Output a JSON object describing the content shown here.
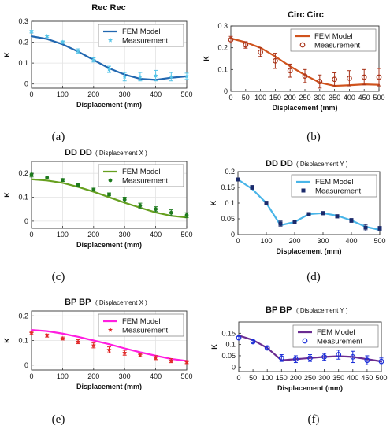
{
  "chart_data": [
    {
      "type": "line",
      "panel": "(a)",
      "title": "Rec Rec",
      "subtitle": "",
      "xlabel": "Displacement (mm)",
      "ylabel": "K",
      "xlim": [
        0,
        500
      ],
      "ylim": [
        -0.02,
        0.3
      ],
      "xticks": [
        0,
        100,
        200,
        300,
        400,
        500
      ],
      "yticks": [
        0,
        0.1,
        0.2,
        0.3
      ],
      "ytick_labels": [
        "0",
        "0.1",
        "0.2",
        "0.3"
      ],
      "grid": true,
      "legend_position": "top-right",
      "model_color": "#2167b0",
      "meas_color": "#57c4e8",
      "meas_marker": "star",
      "series": [
        {
          "name": "FEM Model",
          "kind": "line",
          "x": [
            0,
            50,
            100,
            150,
            200,
            250,
            300,
            350,
            400,
            450,
            500
          ],
          "y": [
            0.228,
            0.215,
            0.19,
            0.155,
            0.115,
            0.075,
            0.045,
            0.025,
            0.02,
            0.03,
            0.037
          ]
        },
        {
          "name": "Measurement",
          "kind": "markers",
          "x": [
            0,
            50,
            100,
            150,
            200,
            250,
            300,
            350,
            400,
            450,
            500
          ],
          "y": [
            0.25,
            0.228,
            0.2,
            0.158,
            0.115,
            0.07,
            0.035,
            0.035,
            0.04,
            0.035,
            0.037
          ],
          "err": [
            0.006,
            0.006,
            0.006,
            0.01,
            0.01,
            0.015,
            0.02,
            0.02,
            0.025,
            0.02,
            0.015
          ]
        }
      ]
    },
    {
      "type": "line",
      "panel": "(b)",
      "title": "Circ Circ",
      "subtitle": "",
      "xlabel": "Displacement (mm)",
      "ylabel": "K",
      "xlim": [
        0,
        500
      ],
      "ylim": [
        0,
        0.3
      ],
      "xticks": [
        0,
        50,
        100,
        150,
        200,
        250,
        300,
        350,
        400,
        450,
        500
      ],
      "yticks": [
        0,
        0.1,
        0.2,
        0.3
      ],
      "ytick_labels": [
        "0",
        "0.1",
        "0.2",
        "0.3"
      ],
      "grid": false,
      "legend_position": "top-right",
      "model_color": "#d0531d",
      "meas_color": "#a83218",
      "meas_marker": "circle-open",
      "series": [
        {
          "name": "FEM Model",
          "kind": "line",
          "x": [
            0,
            50,
            100,
            150,
            200,
            250,
            300,
            350,
            400,
            450,
            500
          ],
          "y": [
            0.243,
            0.225,
            0.2,
            0.16,
            0.115,
            0.075,
            0.04,
            0.025,
            0.028,
            0.032,
            0.03
          ]
        },
        {
          "name": "Measurement",
          "kind": "markers",
          "x": [
            0,
            50,
            100,
            150,
            200,
            250,
            300,
            350,
            400,
            450,
            500
          ],
          "y": [
            0.237,
            0.213,
            0.18,
            0.14,
            0.095,
            0.07,
            0.045,
            0.055,
            0.06,
            0.065,
            0.065
          ],
          "err": [
            0.015,
            0.015,
            0.02,
            0.035,
            0.03,
            0.03,
            0.03,
            0.03,
            0.035,
            0.035,
            0.04
          ]
        }
      ]
    },
    {
      "type": "line",
      "panel": "(c)",
      "title": "DD DD",
      "subtitle": "( Displacement X )",
      "xlabel": "Displacement (mm)",
      "ylabel": "K",
      "xlim": [
        0,
        500
      ],
      "ylim": [
        -0.03,
        0.25
      ],
      "xticks": [
        0,
        100,
        200,
        300,
        400,
        500
      ],
      "yticks": [
        0,
        0.1,
        0.2
      ],
      "ytick_labels": [
        "0",
        "0.1",
        "0.2"
      ],
      "grid": true,
      "legend_position": "top-right",
      "model_color": "#67a020",
      "meas_color": "#1e7a1e",
      "meas_marker": "dot",
      "series": [
        {
          "name": "FEM Model",
          "kind": "line",
          "x": [
            0,
            50,
            100,
            150,
            200,
            250,
            300,
            350,
            400,
            450,
            500
          ],
          "y": [
            0.175,
            0.17,
            0.16,
            0.143,
            0.123,
            0.1,
            0.077,
            0.056,
            0.036,
            0.022,
            0.015
          ]
        },
        {
          "name": "Measurement",
          "kind": "markers",
          "x": [
            0,
            50,
            100,
            150,
            200,
            250,
            300,
            350,
            400,
            450,
            500
          ],
          "y": [
            0.195,
            0.183,
            0.172,
            0.15,
            0.132,
            0.112,
            0.09,
            0.065,
            0.05,
            0.035,
            0.025
          ],
          "err": [
            0.01,
            0.006,
            0.006,
            0.006,
            0.006,
            0.006,
            0.01,
            0.01,
            0.01,
            0.012,
            0.01
          ]
        }
      ]
    },
    {
      "type": "line",
      "panel": "(d)",
      "title": "DD DD",
      "subtitle": "( Displacement Y )",
      "xlabel": "Displacement (mm)",
      "ylabel": "K",
      "xlim": [
        0,
        500
      ],
      "ylim": [
        0,
        0.2
      ],
      "xticks": [
        0,
        100,
        200,
        300,
        400,
        500
      ],
      "yticks": [
        0,
        0.05,
        0.1,
        0.15,
        0.2
      ],
      "ytick_labels": [
        "0",
        "0.05",
        "0.1",
        "0.15",
        "0.2"
      ],
      "grid": false,
      "legend_position": "top-right",
      "model_color": "#49b5e8",
      "meas_color": "#1a2a6b",
      "meas_marker": "square",
      "series": [
        {
          "name": "FEM Model",
          "kind": "line",
          "x": [
            0,
            50,
            100,
            150,
            200,
            250,
            300,
            350,
            400,
            450,
            500
          ],
          "y": [
            0.175,
            0.145,
            0.1,
            0.03,
            0.04,
            0.065,
            0.068,
            0.06,
            0.045,
            0.025,
            0.015
          ]
        },
        {
          "name": "Measurement",
          "kind": "markers",
          "x": [
            0,
            50,
            100,
            150,
            200,
            250,
            300,
            350,
            400,
            450,
            500
          ],
          "y": [
            0.175,
            0.15,
            0.1,
            0.035,
            0.04,
            0.065,
            0.068,
            0.058,
            0.045,
            0.022,
            0.02
          ],
          "err": [
            0.004,
            0.006,
            0.006,
            0.008,
            0.006,
            0.005,
            0.005,
            0.005,
            0.006,
            0.01,
            0.006
          ]
        }
      ]
    },
    {
      "type": "line",
      "panel": "(e)",
      "title": "BP BP",
      "subtitle": "( Displacement X )",
      "xlabel": "Displacement (mm)",
      "ylabel": "K",
      "xlim": [
        0,
        500
      ],
      "ylim": [
        -0.02,
        0.22
      ],
      "xticks": [
        0,
        100,
        200,
        300,
        400,
        500
      ],
      "yticks": [
        0,
        0.1,
        0.2
      ],
      "ytick_labels": [
        "0",
        "0.1",
        "0.2"
      ],
      "grid": true,
      "legend_position": "top-right",
      "model_color": "#ff1ee0",
      "meas_color": "#e02828",
      "meas_marker": "star",
      "series": [
        {
          "name": "FEM Model",
          "kind": "line",
          "x": [
            0,
            50,
            100,
            150,
            200,
            250,
            300,
            350,
            400,
            450,
            500
          ],
          "y": [
            0.143,
            0.138,
            0.128,
            0.115,
            0.1,
            0.085,
            0.068,
            0.052,
            0.038,
            0.025,
            0.017
          ]
        },
        {
          "name": "Measurement",
          "kind": "markers",
          "x": [
            0,
            50,
            100,
            150,
            200,
            250,
            300,
            350,
            400,
            450,
            500
          ],
          "y": [
            0.13,
            0.12,
            0.108,
            0.095,
            0.08,
            0.062,
            0.05,
            0.04,
            0.03,
            0.018,
            0.012
          ],
          "err": [
            0.006,
            0.006,
            0.006,
            0.008,
            0.01,
            0.012,
            0.01,
            0.006,
            0.008,
            0.008,
            0.006
          ]
        }
      ]
    },
    {
      "type": "line",
      "panel": "(f)",
      "title": "BP BP",
      "subtitle": "( Displacement Y )",
      "xlabel": "Displacement (mm)",
      "ylabel": "K",
      "xlim": [
        0,
        500
      ],
      "ylim": [
        -0.02,
        0.2
      ],
      "xticks": [
        0,
        50,
        100,
        150,
        200,
        250,
        300,
        350,
        400,
        450,
        500
      ],
      "yticks": [
        0,
        0.05,
        0.1,
        0.15
      ],
      "ytick_labels": [
        "0",
        "0.05",
        "0.1",
        "0.15"
      ],
      "grid": false,
      "legend_position": "top-right",
      "model_color": "#6a2c91",
      "meas_color": "#1a2dd8",
      "meas_marker": "circle-open",
      "series": [
        {
          "name": "FEM Model",
          "kind": "line",
          "x": [
            0,
            50,
            100,
            150,
            200,
            250,
            300,
            350,
            400,
            450,
            500
          ],
          "y": [
            0.14,
            0.12,
            0.085,
            0.03,
            0.035,
            0.04,
            0.045,
            0.048,
            0.045,
            0.035,
            0.025
          ]
        },
        {
          "name": "Measurement",
          "kind": "markers",
          "x": [
            0,
            50,
            100,
            150,
            200,
            250,
            300,
            350,
            400,
            450,
            500
          ],
          "y": [
            0.13,
            0.113,
            0.085,
            0.04,
            0.035,
            0.04,
            0.045,
            0.055,
            0.045,
            0.03,
            0.025
          ],
          "err": [
            0.006,
            0.006,
            0.006,
            0.015,
            0.015,
            0.015,
            0.015,
            0.02,
            0.025,
            0.02,
            0.015
          ]
        }
      ]
    }
  ]
}
